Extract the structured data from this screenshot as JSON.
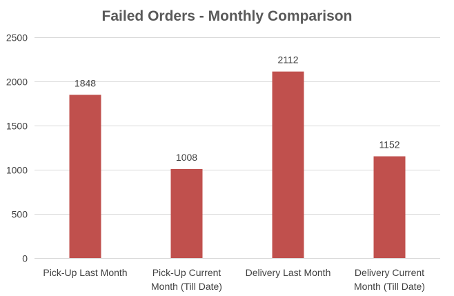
{
  "chart_data": {
    "type": "bar",
    "title": "Failed Orders - Monthly Comparison",
    "categories": [
      [
        "Pick-Up Last Month"
      ],
      [
        "Pick-Up Current",
        "Month (Till Date)"
      ],
      [
        "Delivery Last Month"
      ],
      [
        "Delivery Current",
        "Month (Till Date)"
      ]
    ],
    "values": [
      1848,
      1008,
      2112,
      1152
    ],
    "data_labels": [
      "1848",
      "1008",
      "2112",
      "1152"
    ],
    "ylim": [
      0,
      2500
    ],
    "yticks": [
      "0",
      "500",
      "1000",
      "1500",
      "2000",
      "2500"
    ],
    "ytick_values": [
      0,
      500,
      1000,
      1500,
      2000,
      2500
    ],
    "grid": true,
    "legend": "none",
    "colors": {
      "bar": "#c0504d",
      "grid": "#d9d9d9",
      "text": "#404040",
      "title": "#595959"
    }
  }
}
